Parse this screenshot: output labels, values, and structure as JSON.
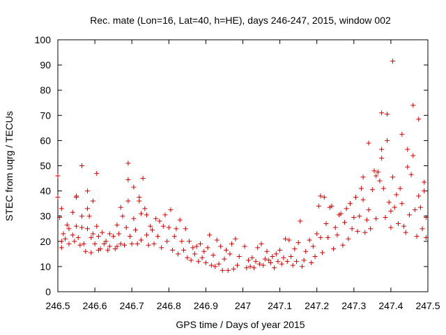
{
  "chart_data": {
    "type": "scatter",
    "title": "Rec. mate (Lon=16, Lat=40, h=HE), days 246-247, 2015, window 002",
    "xlabel": "GPS time / Days of year 2015",
    "ylabel": "STEC from uqrg / TECUs",
    "xlim": [
      246.5,
      247.5
    ],
    "ylim": [
      0,
      100
    ],
    "x_ticks": [
      "246.5",
      "246.6",
      "246.7",
      "246.8",
      "246.9",
      "247",
      "247.1",
      "247.2",
      "247.3",
      "247.4",
      "247.5"
    ],
    "y_ticks": [
      "0",
      "10",
      "20",
      "30",
      "40",
      "50",
      "60",
      "70",
      "80",
      "90",
      "100"
    ],
    "grid": false,
    "marker": "plus",
    "series": [
      {
        "color": "#d00000",
        "points": [
          [
            246.5,
            46.0
          ],
          [
            246.5,
            37.5
          ],
          [
            246.505,
            29.5
          ],
          [
            246.51,
            33.0
          ],
          [
            246.51,
            20.0
          ],
          [
            246.51,
            17.5
          ],
          [
            246.515,
            23.0
          ],
          [
            246.52,
            21.0
          ],
          [
            246.525,
            26.5
          ],
          [
            246.53,
            19.0
          ],
          [
            246.53,
            25.0
          ],
          [
            246.54,
            31.5
          ],
          [
            246.54,
            22.5
          ],
          [
            246.545,
            20.0
          ],
          [
            246.55,
            37.5
          ],
          [
            246.55,
            38.0
          ],
          [
            246.55,
            26.0
          ],
          [
            246.555,
            21.5
          ],
          [
            246.56,
            18.5
          ],
          [
            246.565,
            50.0
          ],
          [
            246.565,
            30.0
          ],
          [
            246.565,
            25.5
          ],
          [
            246.57,
            19.0
          ],
          [
            246.575,
            16.0
          ],
          [
            246.58,
            40.0
          ],
          [
            246.58,
            33.0
          ],
          [
            246.58,
            25.0
          ],
          [
            246.585,
            30.0
          ],
          [
            246.59,
            21.5
          ],
          [
            246.59,
            15.5
          ],
          [
            246.595,
            36.0
          ],
          [
            246.595,
            23.0
          ],
          [
            246.6,
            19.0
          ],
          [
            246.605,
            47.0
          ],
          [
            246.605,
            26.0
          ],
          [
            246.61,
            22.0
          ],
          [
            246.61,
            16.5
          ],
          [
            246.615,
            17.0
          ],
          [
            246.62,
            23.5
          ],
          [
            246.625,
            19.0
          ],
          [
            246.63,
            20.0
          ],
          [
            246.635,
            16.5
          ],
          [
            246.64,
            23.0
          ],
          [
            246.64,
            18.0
          ],
          [
            246.65,
            22.0
          ],
          [
            246.655,
            17.0
          ],
          [
            246.66,
            26.5
          ],
          [
            246.66,
            18.0
          ],
          [
            246.665,
            23.0
          ],
          [
            246.67,
            19.0
          ],
          [
            246.67,
            33.5
          ],
          [
            246.675,
            30.0
          ],
          [
            246.68,
            18.5
          ],
          [
            246.685,
            25.5
          ],
          [
            246.69,
            44.5
          ],
          [
            246.69,
            51.0
          ],
          [
            246.69,
            36.0
          ],
          [
            246.695,
            22.0
          ],
          [
            246.7,
            19.0
          ],
          [
            246.705,
            41.5
          ],
          [
            246.705,
            29.0
          ],
          [
            246.71,
            24.5
          ],
          [
            246.715,
            19.0
          ],
          [
            246.72,
            37.5
          ],
          [
            246.72,
            36.0
          ],
          [
            246.725,
            31.0
          ],
          [
            246.725,
            20.5
          ],
          [
            246.73,
            45.0
          ],
          [
            246.735,
            33.0
          ],
          [
            246.74,
            30.5
          ],
          [
            246.74,
            22.5
          ],
          [
            246.745,
            18.5
          ],
          [
            246.75,
            26.0
          ],
          [
            246.755,
            24.5
          ],
          [
            246.76,
            19.0
          ],
          [
            246.765,
            29.0
          ],
          [
            246.77,
            22.0
          ],
          [
            246.775,
            28.0
          ],
          [
            246.78,
            17.5
          ],
          [
            246.785,
            26.0
          ],
          [
            246.79,
            30.5
          ],
          [
            246.795,
            20.0
          ],
          [
            246.8,
            25.5
          ],
          [
            246.805,
            32.5
          ],
          [
            246.81,
            16.5
          ],
          [
            246.815,
            22.0
          ],
          [
            246.82,
            25.0
          ],
          [
            246.825,
            15.0
          ],
          [
            246.83,
            28.5
          ],
          [
            246.835,
            20.0
          ],
          [
            246.84,
            16.5
          ],
          [
            246.845,
            25.0
          ],
          [
            246.85,
            13.5
          ],
          [
            246.855,
            20.0
          ],
          [
            246.86,
            12.5
          ],
          [
            246.865,
            17.5
          ],
          [
            246.87,
            15.0
          ],
          [
            246.875,
            18.0
          ],
          [
            246.88,
            12.0
          ],
          [
            246.885,
            19.0
          ],
          [
            246.89,
            13.5
          ],
          [
            246.895,
            16.0
          ],
          [
            246.9,
            11.5
          ],
          [
            246.905,
            17.5
          ],
          [
            246.91,
            22.5
          ],
          [
            246.915,
            10.5
          ],
          [
            246.92,
            14.5
          ],
          [
            246.925,
            10.0
          ],
          [
            246.93,
            20.5
          ],
          [
            246.935,
            11.0
          ],
          [
            246.94,
            18.0
          ],
          [
            246.945,
            8.5
          ],
          [
            246.95,
            13.0
          ],
          [
            246.955,
            16.5
          ],
          [
            246.96,
            8.5
          ],
          [
            246.965,
            15.0
          ],
          [
            246.97,
            19.0
          ],
          [
            246.975,
            9.0
          ],
          [
            246.98,
            21.0
          ],
          [
            246.985,
            10.5
          ],
          [
            246.99,
            14.0
          ],
          [
            247.005,
            18.0
          ],
          [
            247.01,
            9.5
          ],
          [
            247.015,
            12.5
          ],
          [
            247.02,
            10.0
          ],
          [
            247.025,
            13.5
          ],
          [
            247.03,
            9.5
          ],
          [
            247.035,
            12.0
          ],
          [
            247.04,
            17.5
          ],
          [
            247.045,
            11.0
          ],
          [
            247.05,
            19.0
          ],
          [
            247.055,
            10.5
          ],
          [
            247.06,
            13.0
          ],
          [
            247.065,
            16.0
          ],
          [
            247.07,
            12.5
          ],
          [
            247.075,
            11.5
          ],
          [
            247.08,
            14.0
          ],
          [
            247.085,
            9.5
          ],
          [
            247.09,
            15.0
          ],
          [
            247.095,
            12.0
          ],
          [
            247.1,
            16.5
          ],
          [
            247.105,
            11.0
          ],
          [
            247.11,
            13.5
          ],
          [
            247.115,
            21.0
          ],
          [
            247.12,
            12.0
          ],
          [
            247.125,
            20.5
          ],
          [
            247.13,
            14.0
          ],
          [
            247.135,
            10.5
          ],
          [
            247.14,
            17.0
          ],
          [
            247.145,
            12.0
          ],
          [
            247.15,
            19.5
          ],
          [
            247.155,
            28.0
          ],
          [
            247.16,
            10.0
          ],
          [
            247.165,
            12.5
          ],
          [
            247.17,
            16.0
          ],
          [
            247.18,
            20.5
          ],
          [
            247.185,
            11.5
          ],
          [
            247.19,
            18.0
          ],
          [
            247.195,
            14.0
          ],
          [
            247.2,
            23.0
          ],
          [
            247.205,
            34.0
          ],
          [
            247.21,
            38.0
          ],
          [
            247.21,
            21.5
          ],
          [
            247.215,
            15.5
          ],
          [
            247.22,
            37.5
          ],
          [
            247.225,
            27.0
          ],
          [
            247.23,
            21.5
          ],
          [
            247.235,
            33.5
          ],
          [
            247.24,
            34.0
          ],
          [
            247.245,
            17.0
          ],
          [
            247.25,
            25.5
          ],
          [
            247.255,
            22.5
          ],
          [
            247.26,
            30.5
          ],
          [
            247.265,
            31.0
          ],
          [
            247.27,
            18.5
          ],
          [
            247.275,
            27.5
          ],
          [
            247.28,
            33.0
          ],
          [
            247.285,
            21.0
          ],
          [
            247.29,
            35.0
          ],
          [
            247.295,
            25.0
          ],
          [
            247.3,
            29.5
          ],
          [
            247.305,
            37.5
          ],
          [
            247.31,
            24.0
          ],
          [
            247.315,
            30.0
          ],
          [
            247.32,
            41.0
          ],
          [
            247.325,
            45.5
          ],
          [
            247.325,
            36.5
          ],
          [
            247.33,
            23.5
          ],
          [
            247.335,
            28.5
          ],
          [
            247.34,
            59.0
          ],
          [
            247.34,
            32.5
          ],
          [
            247.345,
            25.0
          ],
          [
            247.35,
            40.5
          ],
          [
            247.355,
            48.0
          ],
          [
            247.36,
            29.0
          ],
          [
            247.36,
            46.0
          ],
          [
            247.365,
            47.5
          ],
          [
            247.37,
            44.0
          ],
          [
            247.375,
            71.0
          ],
          [
            247.375,
            56.5
          ],
          [
            247.375,
            53.0
          ],
          [
            247.38,
            41.0
          ],
          [
            247.385,
            29.5
          ],
          [
            247.39,
            70.5
          ],
          [
            247.39,
            60.0
          ],
          [
            247.395,
            35.5
          ],
          [
            247.4,
            25.5
          ],
          [
            247.4,
            32.0
          ],
          [
            247.405,
            91.5
          ],
          [
            247.405,
            45.5
          ],
          [
            247.41,
            33.5
          ],
          [
            247.415,
            38.5
          ],
          [
            247.42,
            27.0
          ],
          [
            247.425,
            41.0
          ],
          [
            247.43,
            62.5
          ],
          [
            247.43,
            35.0
          ],
          [
            247.435,
            26.0
          ],
          [
            247.44,
            23.5
          ],
          [
            247.445,
            56.5
          ],
          [
            247.445,
            49.5
          ],
          [
            247.45,
            30.5
          ],
          [
            247.455,
            46.5
          ],
          [
            247.46,
            74.0
          ],
          [
            247.46,
            54.0
          ],
          [
            247.465,
            32.5
          ],
          [
            247.47,
            22.0
          ],
          [
            247.475,
            68.5
          ],
          [
            247.475,
            38.0
          ],
          [
            247.48,
            33.5
          ],
          [
            247.485,
            25.0
          ],
          [
            247.49,
            43.5
          ],
          [
            247.49,
            40.0
          ],
          [
            247.495,
            29.5
          ],
          [
            247.495,
            21.5
          ]
        ]
      }
    ]
  }
}
